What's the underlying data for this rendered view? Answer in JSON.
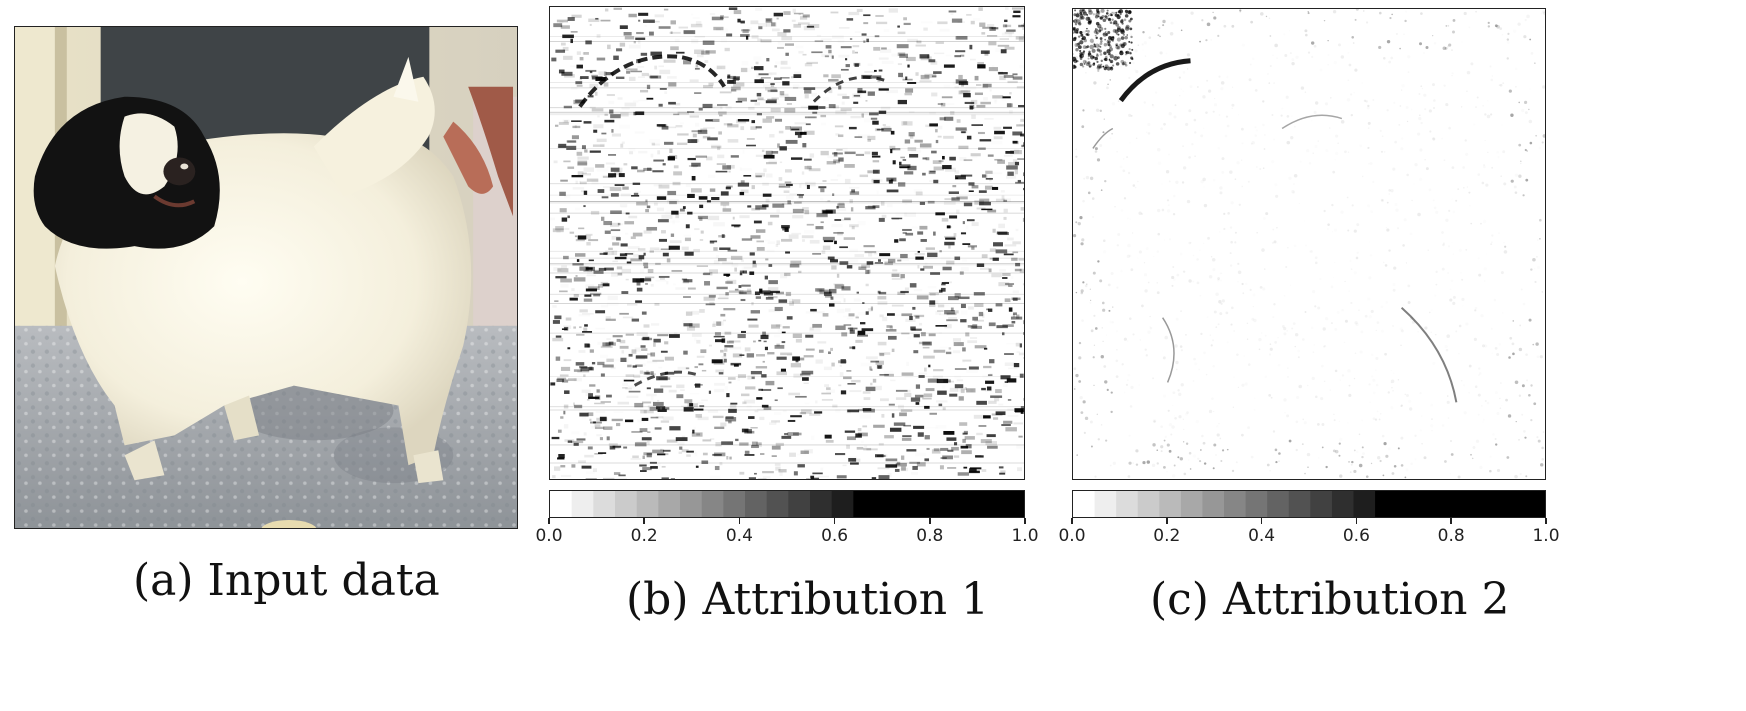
{
  "figure": {
    "panels": [
      {
        "id": "a",
        "caption": "(a) Input data",
        "kind": "photo"
      },
      {
        "id": "b",
        "caption": "(b) Attribution 1",
        "kind": "attribution",
        "colorbar_ticks": [
          "0.0",
          "0.2",
          "0.4",
          "0.6",
          "0.8",
          "1.0"
        ]
      },
      {
        "id": "c",
        "caption": "(c) Attribution 2",
        "kind": "attribution",
        "colorbar_ticks": [
          "0.0",
          "0.2",
          "0.4",
          "0.6",
          "0.8",
          "1.0"
        ]
      }
    ]
  },
  "colors": {
    "frame": "#222222",
    "attribution_high": "#000000",
    "attribution_low": "#ffffff"
  }
}
